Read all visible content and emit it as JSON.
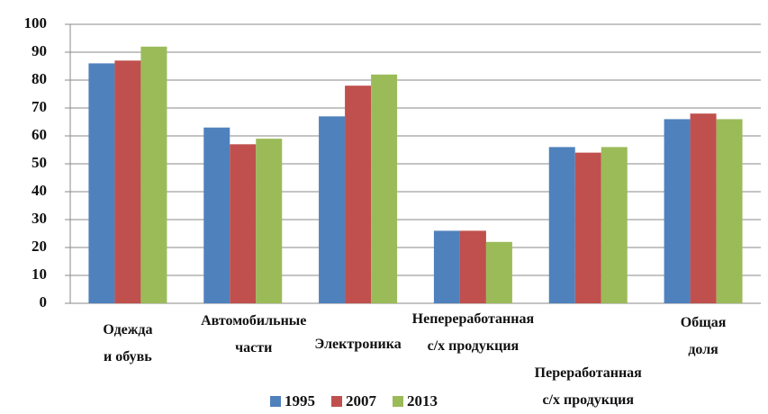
{
  "chart_data": {
    "type": "bar",
    "categories": [
      "Одежда\nи обувь",
      "Автомобильные\nчасти",
      "Электроника",
      "Непереработанная\nс/х продукция",
      "Переработанная\nс/х продукция",
      "Общая\nдоля"
    ],
    "series": [
      {
        "name": "1995",
        "color": "#4f81bd",
        "values": [
          86,
          63,
          67,
          26,
          56,
          66
        ]
      },
      {
        "name": "2007",
        "color": "#c0504d",
        "values": [
          87,
          57,
          78,
          26,
          54,
          68
        ]
      },
      {
        "name": "2013",
        "color": "#9bbb59",
        "values": [
          92,
          59,
          82,
          22,
          56,
          66
        ]
      }
    ],
    "ylim": [
      0,
      100
    ],
    "yticks": [
      0,
      10,
      20,
      30,
      40,
      50,
      60,
      70,
      80,
      90,
      100
    ],
    "grid": true,
    "legend": "bottom"
  }
}
